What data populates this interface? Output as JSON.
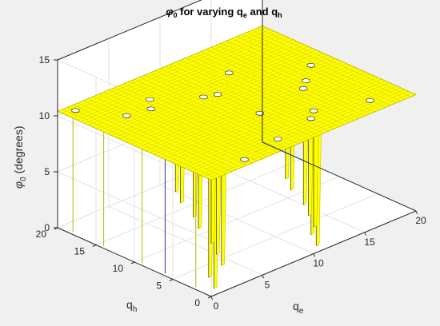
{
  "chart_data": {
    "type": "surface",
    "title_parts": {
      "phi": "φ",
      "sub0": "0",
      "mid": " for varying q",
      "sub_e": "e",
      "and": " and q",
      "sub_h": "h"
    },
    "xlabel_parts": {
      "base": "q",
      "sub": "e"
    },
    "ylabel_parts": {
      "base": "q",
      "sub": "h"
    },
    "zlabel_parts": {
      "phi": "φ",
      "sub": "0",
      "rest": " (degrees)"
    },
    "xlim": [
      0,
      20
    ],
    "ylim": [
      0,
      20
    ],
    "zlim": [
      0,
      15
    ],
    "xticks": [
      "0",
      "5",
      "10",
      "15",
      "20"
    ],
    "yticks": [
      "0",
      "5",
      "10",
      "15",
      "20"
    ],
    "zticks": [
      "0",
      "5",
      "10",
      "15"
    ],
    "plateau_value": 10.4,
    "dip_value": 0,
    "surface_color": "#ffff00",
    "edge_color": "#b8b800",
    "dip_columns_qe": [
      1,
      2,
      4,
      5,
      6,
      7,
      8,
      9,
      10,
      11,
      12,
      13,
      14,
      15,
      16,
      17
    ],
    "grid": true
  }
}
